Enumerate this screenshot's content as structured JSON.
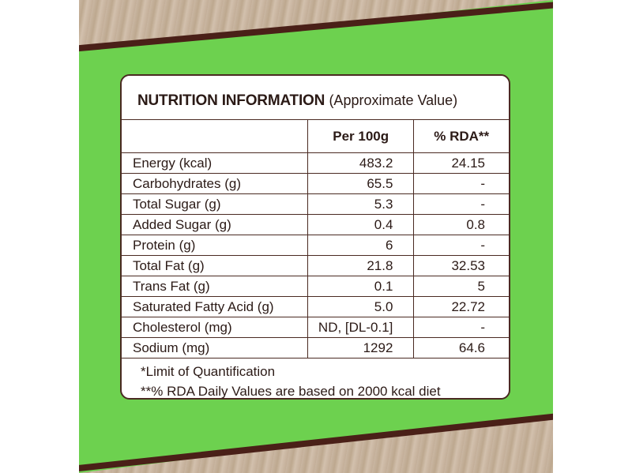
{
  "colors": {
    "panel_green": "#6dd14f",
    "text_brown": "#2b1a16",
    "border_brown": "#4a2a22"
  },
  "card": {
    "title_bold": "NUTRITION INFORMATION",
    "title_sub": "(Approximate Value)",
    "columns": [
      "",
      "Per 100g",
      "% RDA**"
    ],
    "rows": [
      {
        "nutrient": "Energy (kcal)",
        "per100": "483.2",
        "rda": "24.15"
      },
      {
        "nutrient": "Carbohydrates (g)",
        "per100": "65.5",
        "rda": "-"
      },
      {
        "nutrient": "Total Sugar (g)",
        "per100": "5.3",
        "rda": "-"
      },
      {
        "nutrient": "Added Sugar (g)",
        "per100": "0.4",
        "rda": "0.8"
      },
      {
        "nutrient": "Protein (g)",
        "per100": "6",
        "rda": "-"
      },
      {
        "nutrient": "Total Fat (g)",
        "per100": "21.8",
        "rda": "32.53"
      },
      {
        "nutrient": "Trans Fat (g)",
        "per100": "0.1",
        "rda": "5"
      },
      {
        "nutrient": "Saturated Fatty Acid (g)",
        "per100": "5.0",
        "rda": "22.72"
      },
      {
        "nutrient": "Cholesterol (mg)",
        "per100": "ND, [DL-0.1]",
        "rda": "-"
      },
      {
        "nutrient": "Sodium (mg)",
        "per100": "1292",
        "rda": "64.6"
      }
    ],
    "footnotes": [
      "*Limit of Quantification",
      "**% RDA Daily Values are based on 2000 kcal diet"
    ]
  }
}
